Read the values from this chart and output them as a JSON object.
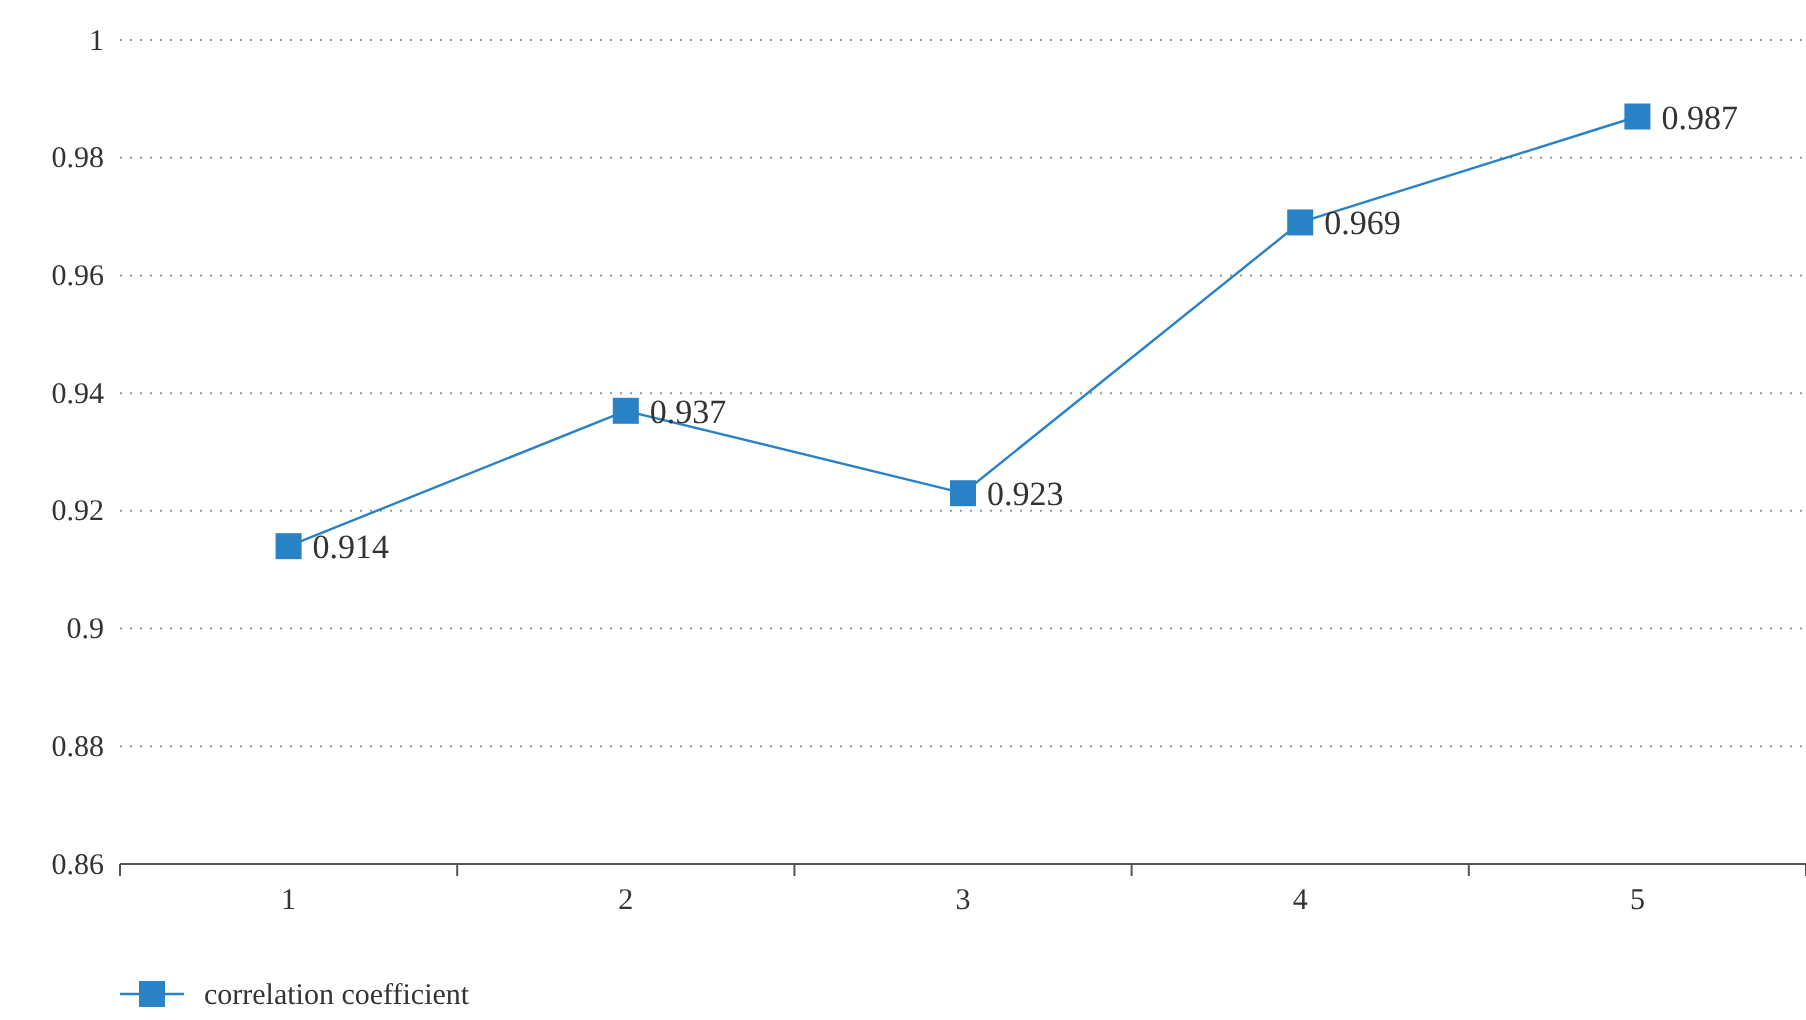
{
  "chart_data": {
    "type": "line",
    "categories": [
      "1",
      "2",
      "3",
      "4",
      "5"
    ],
    "series": [
      {
        "name": "correlation coefficient",
        "color": "#2a82c6",
        "values": [
          0.914,
          0.937,
          0.923,
          0.969,
          0.987
        ]
      }
    ],
    "ylim": [
      0.86,
      1
    ],
    "yticks": [
      0.86,
      0.88,
      0.9,
      0.92,
      0.94,
      0.96,
      0.98,
      1
    ],
    "grid": "y",
    "legend": "bottom",
    "marker": "square",
    "line_style": "solid",
    "data_labels": true
  }
}
